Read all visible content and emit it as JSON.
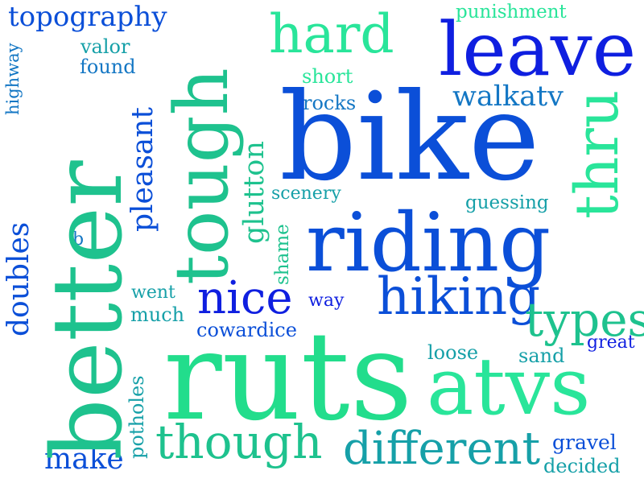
{
  "colors": {
    "background": "#ffffff",
    "palette": [
      "#0f1fe0",
      "#0b4fd8",
      "#1477c4",
      "#16a0a8",
      "#1ec28e",
      "#29e59a",
      "#22dd8c"
    ]
  },
  "words": {
    "topography": "topography",
    "punishment": "punishment",
    "hard": "hard",
    "leave": "leave",
    "tough": "tough",
    "highway": "highway",
    "valor": "valor",
    "found": "found",
    "short": "short",
    "rocks": "rocks",
    "walkatv": "walkatv",
    "better": "better",
    "bike": "bike",
    "thru": "thru",
    "pleasant": "pleasant",
    "glutton": "glutton",
    "scenery": "scenery",
    "guessing": "guessing",
    "riding": "riding",
    "doubles": "doubles",
    "b": "b",
    "shame": "shame",
    "nice": "nice",
    "hiking": "hiking",
    "went": "went",
    "way": "way",
    "much": "much",
    "types": "types",
    "cowardice": "cowardice",
    "great": "great",
    "ruts": "ruts",
    "loose": "loose",
    "sand": "sand",
    "atvs": "atvs",
    "potholes": "potholes",
    "though": "though",
    "different": "different",
    "gravel": "gravel",
    "make": "make",
    "decided": "decided"
  }
}
